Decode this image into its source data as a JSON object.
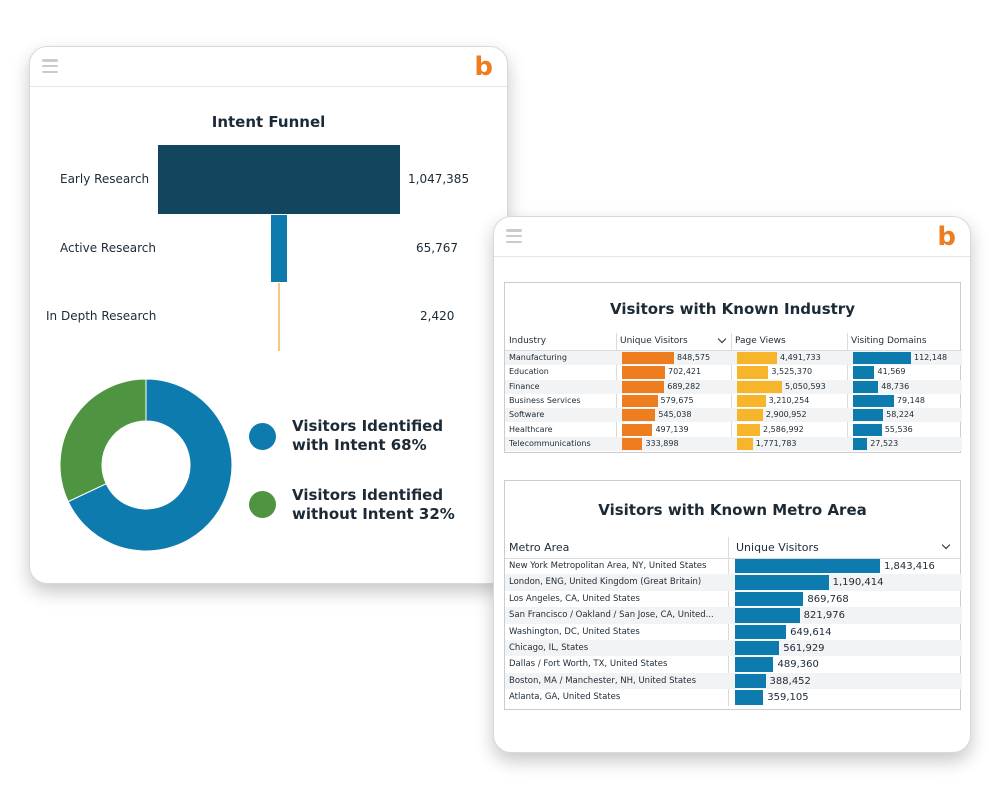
{
  "funnel": {
    "title": "Intent Funnel",
    "stages": [
      {
        "label": "Early Research",
        "value": 1047385,
        "display": "1,047,385",
        "color": "#12465f"
      },
      {
        "label": "Active Research",
        "value": 65767,
        "display": "65,767",
        "color": "#0e7baf"
      },
      {
        "label": "In Depth Research",
        "value": 2420,
        "display": "2,420",
        "color": "#f5c97a"
      }
    ]
  },
  "donut": {
    "items": [
      {
        "line1": "Visitors Identified",
        "line2": "with Intent  68%",
        "percent": 68,
        "color": "#0e7baf"
      },
      {
        "line1": "Visitors Identified",
        "line2": "without Intent 32%",
        "percent": 32,
        "color": "#4f9441"
      }
    ]
  },
  "industry": {
    "title": "Visitors with Known Industry",
    "columns": [
      "Industry",
      "Unique Visitors",
      "Page Views",
      "Visiting Domains"
    ],
    "colors": [
      "#ee7d1f",
      "#f7b52c",
      "#0e7baf"
    ],
    "rows": [
      {
        "name": "Manufacturing",
        "uv": 848575,
        "uv_d": "848,575",
        "pv": 4491733,
        "pv_d": "4,491,733",
        "vd": 112148,
        "vd_d": "112,148"
      },
      {
        "name": "Education",
        "uv": 702421,
        "uv_d": "702,421",
        "pv": 3525370,
        "pv_d": "3,525,370",
        "vd": 41569,
        "vd_d": "41,569"
      },
      {
        "name": "Finance",
        "uv": 689282,
        "uv_d": "689,282",
        "pv": 5050593,
        "pv_d": "5,050,593",
        "vd": 48736,
        "vd_d": "48,736"
      },
      {
        "name": "Business Services",
        "uv": 579675,
        "uv_d": "579,675",
        "pv": 3210254,
        "pv_d": "3,210,254",
        "vd": 79148,
        "vd_d": "79,148"
      },
      {
        "name": "Software",
        "uv": 545038,
        "uv_d": "545,038",
        "pv": 2900952,
        "pv_d": "2,900,952",
        "vd": 58224,
        "vd_d": "58,224"
      },
      {
        "name": "Healthcare",
        "uv": 497139,
        "uv_d": "497,139",
        "pv": 2586992,
        "pv_d": "2,586,992",
        "vd": 55536,
        "vd_d": "55,536"
      },
      {
        "name": "Telecommunications",
        "uv": 333898,
        "uv_d": "333,898",
        "pv": 1771783,
        "pv_d": "1,771,783",
        "vd": 27523,
        "vd_d": "27,523"
      }
    ]
  },
  "metro": {
    "title": "Visitors with Known Metro Area",
    "columns": [
      "Metro Area",
      "Unique Visitors"
    ],
    "color": "#0e7baf",
    "rows": [
      {
        "name": "New York Metropolitan Area, NY, United States",
        "v": 1843416,
        "d": "1,843,416"
      },
      {
        "name": "London, ENG, United Kingdom (Great Britain)",
        "v": 1190414,
        "d": "1,190,414"
      },
      {
        "name": "Los Angeles, CA, United States",
        "v": 869768,
        "d": "869,768"
      },
      {
        "name": "San Francisco / Oakland / San Jose, CA, United...",
        "v": 821976,
        "d": "821,976"
      },
      {
        "name": "Washington, DC, United States",
        "v": 649614,
        "d": "649,614"
      },
      {
        "name": "Chicago, IL,  States",
        "v": 561929,
        "d": "561,929"
      },
      {
        "name": "Dallas / Fort Worth, TX, United States",
        "v": 489360,
        "d": "489,360"
      },
      {
        "name": "Boston, MA / Manchester, NH, United States",
        "v": 388452,
        "d": "388,452"
      },
      {
        "name": "Atlanta, GA, United States",
        "v": 359105,
        "d": "359,105"
      }
    ]
  },
  "chart_data": [
    {
      "type": "bar",
      "title": "Intent Funnel",
      "categories": [
        "Early Research",
        "Active Research",
        "In Depth Research"
      ],
      "values": [
        1047385,
        65767,
        2420
      ]
    },
    {
      "type": "pie",
      "categories": [
        "Visitors Identified with Intent",
        "Visitors Identified without Intent"
      ],
      "values": [
        68,
        32
      ]
    },
    {
      "type": "bar",
      "title": "Visitors with Known Industry",
      "categories": [
        "Manufacturing",
        "Education",
        "Finance",
        "Business Services",
        "Software",
        "Healthcare",
        "Telecommunications"
      ],
      "series": [
        {
          "name": "Unique Visitors",
          "values": [
            848575,
            702421,
            689282,
            579675,
            545038,
            497139,
            333898
          ]
        },
        {
          "name": "Page Views",
          "values": [
            4491733,
            3525370,
            5050593,
            3210254,
            2900952,
            2586992,
            1771783
          ]
        },
        {
          "name": "Visiting Domains",
          "values": [
            112148,
            41569,
            48736,
            79148,
            58224,
            55536,
            27523
          ]
        }
      ]
    },
    {
      "type": "bar",
      "title": "Visitors with Known Metro Area",
      "categories": [
        "New York Metropolitan Area, NY, United States",
        "London, ENG, United Kingdom (Great Britain)",
        "Los Angeles, CA, United States",
        "San Francisco / Oakland / San Jose, CA, United...",
        "Washington, DC, United States",
        "Chicago, IL,  States",
        "Dallas / Fort Worth, TX, United States",
        "Boston, MA / Manchester, NH, United States",
        "Atlanta, GA, United States"
      ],
      "series": [
        {
          "name": "Unique Visitors",
          "values": [
            1843416,
            1190414,
            869768,
            821976,
            649614,
            561929,
            489360,
            388452,
            359105
          ]
        }
      ]
    }
  ]
}
